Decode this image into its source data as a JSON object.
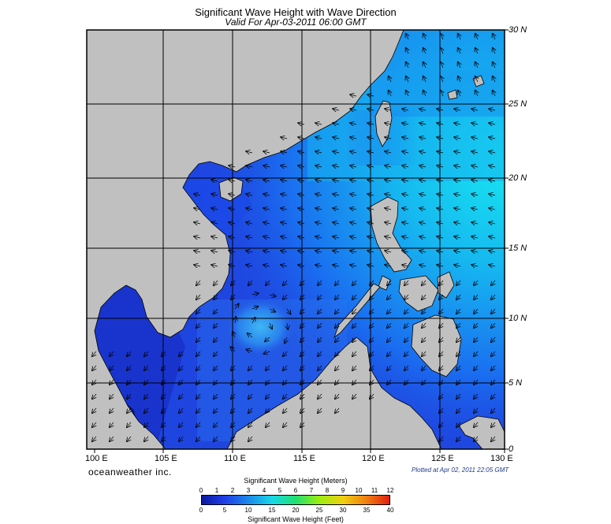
{
  "title": "Significant Wave Height with Wave Direction",
  "subtitle": "Valid For Apr-03-2011 06:00 GMT",
  "lat_labels": [
    "30 N",
    "25 N",
    "20 N",
    "15 N",
    "10 N",
    "5 N",
    "0"
  ],
  "lon_labels": [
    "100 E",
    "105 E",
    "110 E",
    "115 E",
    "120 E",
    "125 E",
    "130 E"
  ],
  "brand": "oceanweather inc.",
  "plotted": "Plotted at Apr 02, 2011 22:05 GMT",
  "colorbar": {
    "meters_title": "Significant Wave Height (Meters)",
    "meters_ticks": [
      "0",
      "1",
      "2",
      "3",
      "4",
      "5",
      "6",
      "7",
      "8",
      "9",
      "10",
      "11",
      "12"
    ],
    "feet_title": "Significant Wave Height (Feet)",
    "feet_ticks": [
      "0",
      "5",
      "10",
      "15",
      "20",
      "25",
      "30",
      "35",
      "40"
    ],
    "colors": [
      "#0a1aa0",
      "#1f3fe8",
      "#1a8ae8",
      "#19d8e8",
      "#20e070",
      "#9aee10",
      "#f0d010",
      "#f08010",
      "#e02010"
    ]
  },
  "map": {
    "land_color": "#c0c0c0",
    "sea_low_color": "#1a38d8",
    "sea_high_color": "#17e8f0",
    "grid_color": "#000000",
    "extent": {
      "lon": [
        99,
        130
      ],
      "lat": [
        0,
        30
      ]
    }
  }
}
